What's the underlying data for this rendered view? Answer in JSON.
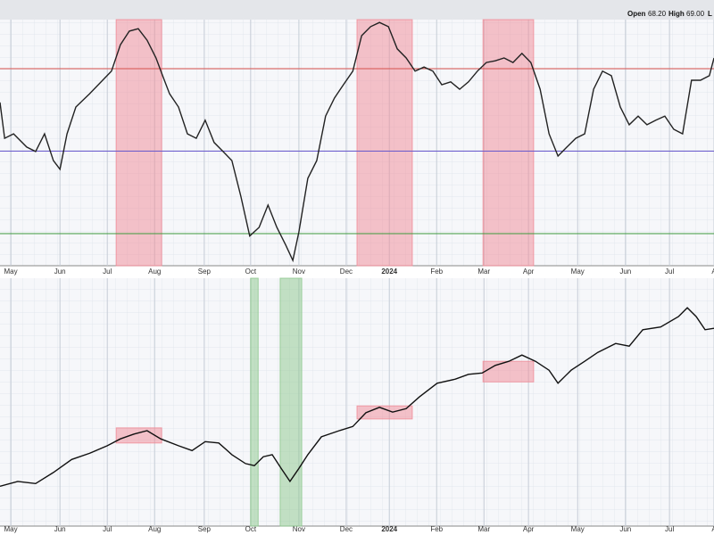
{
  "header": {
    "items": [
      "Open",
      "68.20",
      "High",
      "69.00",
      "L"
    ]
  },
  "chart_data": [
    {
      "type": "line",
      "color": "#222222",
      "x": [
        -0.23,
        -0.13,
        0.06,
        0.34,
        0.53,
        0.72,
        0.91,
        1.05,
        1.2,
        1.39,
        1.68,
        1.96,
        2.15,
        2.34,
        2.53,
        2.72,
        2.91,
        3.1,
        3.24,
        3.39,
        3.58,
        3.77,
        3.96,
        4.15,
        4.34,
        4.53,
        4.72,
        4.91,
        5.1,
        5.3,
        5.49,
        5.68,
        5.87,
        6.02,
        6.15,
        6.34,
        6.53,
        6.72,
        6.91,
        7.1,
        7.3,
        7.49,
        7.68,
        7.87,
        8.06,
        8.25,
        8.44,
        8.63,
        8.82,
        9.01,
        9.2,
        9.39,
        9.58,
        9.77,
        9.96,
        10.15,
        10.34,
        10.53,
        10.72,
        10.91,
        11.1,
        11.3,
        11.49,
        11.68,
        11.87,
        12.06,
        12.25,
        12.44,
        12.63,
        12.82,
        13.01,
        13.2,
        13.39,
        13.58,
        13.77,
        13.96,
        14.15,
        14.34,
        14.53,
        14.72,
        14.91,
        15.01
      ],
      "values": [
        61.8,
        53.1,
        54.2,
        51.0,
        49.9,
        54.2,
        47.7,
        45.6,
        54.2,
        60.7,
        63.9,
        67.2,
        69.4,
        75.8,
        79.1,
        79.7,
        76.9,
        72.6,
        68.3,
        63.9,
        60.7,
        54.2,
        53.1,
        57.5,
        52.1,
        49.9,
        47.7,
        39.1,
        29.4,
        31.5,
        36.9,
        31.5,
        27.2,
        23.5,
        30.4,
        43.4,
        47.7,
        58.5,
        62.9,
        66.1,
        69.4,
        78.0,
        80.2,
        81.2,
        80.2,
        74.8,
        72.6,
        69.4,
        70.4,
        69.4,
        66.1,
        66.8,
        65.0,
        66.8,
        69.4,
        71.5,
        71.9,
        72.6,
        71.5,
        73.7,
        71.5,
        65.0,
        54.2,
        48.8,
        51.0,
        53.1,
        54.2,
        65.0,
        69.4,
        68.3,
        60.7,
        56.4,
        58.5,
        56.4,
        57.5,
        58.5,
        55.3,
        54.2,
        67.2,
        67.2,
        68.3,
        72.6
      ],
      "xlim": [
        -0.23,
        15.01
      ],
      "ylim": [
        22.2,
        81.9
      ],
      "xticks": [
        {
          "value": 0,
          "label": "May"
        },
        {
          "value": 1.05,
          "label": "Jun"
        },
        {
          "value": 2.06,
          "label": "Jul"
        },
        {
          "value": 3.07,
          "label": "Aug"
        },
        {
          "value": 4.13,
          "label": "Sep"
        },
        {
          "value": 5.12,
          "label": "Oct"
        },
        {
          "value": 6.15,
          "label": "Nov"
        },
        {
          "value": 7.16,
          "label": "Dec"
        },
        {
          "value": 8.08,
          "label": "2024"
        },
        {
          "value": 9.09,
          "label": "Feb"
        },
        {
          "value": 10.1,
          "label": "Mar"
        },
        {
          "value": 11.05,
          "label": "Apr"
        },
        {
          "value": 12.1,
          "label": "May"
        },
        {
          "value": 13.12,
          "label": "Jun"
        },
        {
          "value": 14.06,
          "label": "Jul"
        },
        {
          "value": 15.01,
          "label": "A"
        }
      ],
      "hlines": [
        {
          "value": 70,
          "color": "#d9534f"
        },
        {
          "value": 50,
          "color": "#6a5acd"
        },
        {
          "value": 30,
          "color": "#3c9a3c"
        }
      ],
      "highlights": [
        {
          "x": [
            2.25,
            3.22
          ],
          "color": "#f08a95"
        },
        {
          "x": [
            7.39,
            8.57
          ],
          "color": "#f08a95"
        },
        {
          "x": [
            10.08,
            11.16
          ],
          "color": "#f08a95"
        }
      ],
      "grid": true
    },
    {
      "type": "line",
      "color": "#111111",
      "x": [
        -0.23,
        0.15,
        0.53,
        0.91,
        1.3,
        1.68,
        2.06,
        2.34,
        2.63,
        2.91,
        3.2,
        3.58,
        3.87,
        4.15,
        4.44,
        4.72,
        5.01,
        5.2,
        5.39,
        5.58,
        5.77,
        5.96,
        6.15,
        6.34,
        6.63,
        7.01,
        7.3,
        7.58,
        7.87,
        8.15,
        8.44,
        8.72,
        9.1,
        9.49,
        9.77,
        10.06,
        10.34,
        10.63,
        10.91,
        11.2,
        11.49,
        11.68,
        11.96,
        12.25,
        12.53,
        12.91,
        13.2,
        13.49,
        13.87,
        14.25,
        14.44,
        14.63,
        14.82,
        15.01
      ],
      "values": [
        45.8,
        46.5,
        46.2,
        47.8,
        49.7,
        50.6,
        51.7,
        52.7,
        53.4,
        53.9,
        52.7,
        51.7,
        51.0,
        52.3,
        52.1,
        50.4,
        49.1,
        48.8,
        50.1,
        50.4,
        48.4,
        46.5,
        48.4,
        50.4,
        53.0,
        53.9,
        54.5,
        56.5,
        57.3,
        56.6,
        57.1,
        58.8,
        60.8,
        61.4,
        62.1,
        62.3,
        63.4,
        64.0,
        64.9,
        64.0,
        62.7,
        60.8,
        62.7,
        64.0,
        65.3,
        66.6,
        66.2,
        68.6,
        69.0,
        70.5,
        71.8,
        70.5,
        68.6,
        68.8
      ],
      "xlim": [
        -0.23,
        15.01
      ],
      "ylim": [
        40,
        76.1
      ],
      "xticks": [
        {
          "value": 0,
          "label": "May"
        },
        {
          "value": 1.05,
          "label": "Jun"
        },
        {
          "value": 2.06,
          "label": "Jul"
        },
        {
          "value": 3.07,
          "label": "Aug"
        },
        {
          "value": 4.13,
          "label": "Sep"
        },
        {
          "value": 5.12,
          "label": "Oct"
        },
        {
          "value": 6.15,
          "label": "Nov"
        },
        {
          "value": 7.16,
          "label": "Dec"
        },
        {
          "value": 8.08,
          "label": "2024"
        },
        {
          "value": 9.09,
          "label": "Feb"
        },
        {
          "value": 10.1,
          "label": "Mar"
        },
        {
          "value": 11.05,
          "label": "Apr"
        },
        {
          "value": 12.1,
          "label": "May"
        },
        {
          "value": 13.12,
          "label": "Jun"
        },
        {
          "value": 14.06,
          "label": "Jul"
        },
        {
          "value": 15.01,
          "label": "A"
        }
      ],
      "highlights": [
        {
          "x": [
            2.25,
            3.22
          ],
          "y": [
            52.1,
            54.3
          ],
          "color": "#f08a95"
        },
        {
          "x": [
            7.39,
            8.57
          ],
          "y": [
            55.6,
            57.5
          ],
          "color": "#f08a95"
        },
        {
          "x": [
            10.08,
            11.16
          ],
          "y": [
            61.0,
            64.0
          ],
          "color": "#f08a95"
        },
        {
          "x": [
            5.12,
            5.28
          ],
          "color": "#8cc78c"
        },
        {
          "x": [
            5.75,
            6.21
          ],
          "color": "#8cc78c"
        }
      ],
      "grid": true
    }
  ]
}
